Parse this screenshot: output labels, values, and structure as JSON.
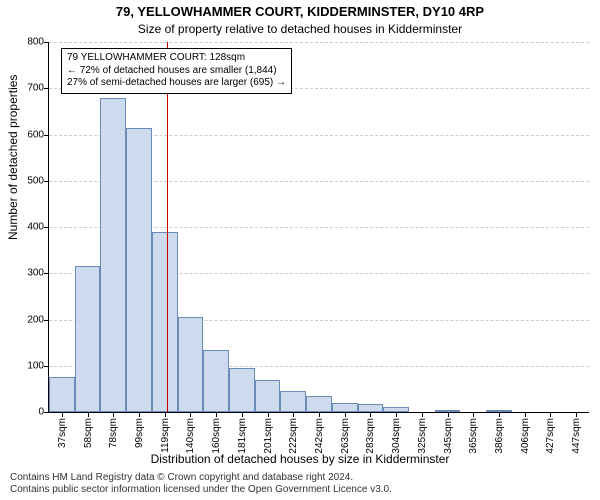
{
  "title": "79, YELLOWHAMMER COURT, KIDDERMINSTER, DY10 4RP",
  "subtitle": "Size of property relative to detached houses in Kidderminster",
  "ylabel": "Number of detached properties",
  "xlabel": "Distribution of detached houses by size in Kidderminster",
  "attribution_line1": "Contains HM Land Registry data © Crown copyright and database right 2024.",
  "attribution_line2": "Contains public sector information licensed under the Open Government Licence v3.0.",
  "annotation": {
    "line1": "79 YELLOWHAMMER COURT: 128sqm",
    "line2": "← 72% of detached houses are smaller (1,844)",
    "line3": "27% of semi-detached houses are larger (695) →"
  },
  "chart": {
    "type": "histogram",
    "ylim": [
      0,
      800
    ],
    "ytick_step": 100,
    "bar_fill": "#cedbef",
    "bar_stroke": "#6b8bb8",
    "grid_color": "#cccccc",
    "refline_color": "#cc0000",
    "refline_x_index": 4.6,
    "background": "#ffffff",
    "categories": [
      "37sqm",
      "58sqm",
      "78sqm",
      "99sqm",
      "119sqm",
      "140sqm",
      "160sqm",
      "181sqm",
      "201sqm",
      "222sqm",
      "242sqm",
      "263sqm",
      "283sqm",
      "304sqm",
      "325sqm",
      "345sqm",
      "365sqm",
      "386sqm",
      "406sqm",
      "427sqm",
      "447sqm"
    ],
    "values": [
      75,
      315,
      680,
      615,
      390,
      205,
      135,
      95,
      70,
      45,
      35,
      20,
      18,
      10,
      1,
      5,
      1,
      4,
      0,
      2,
      1
    ]
  }
}
